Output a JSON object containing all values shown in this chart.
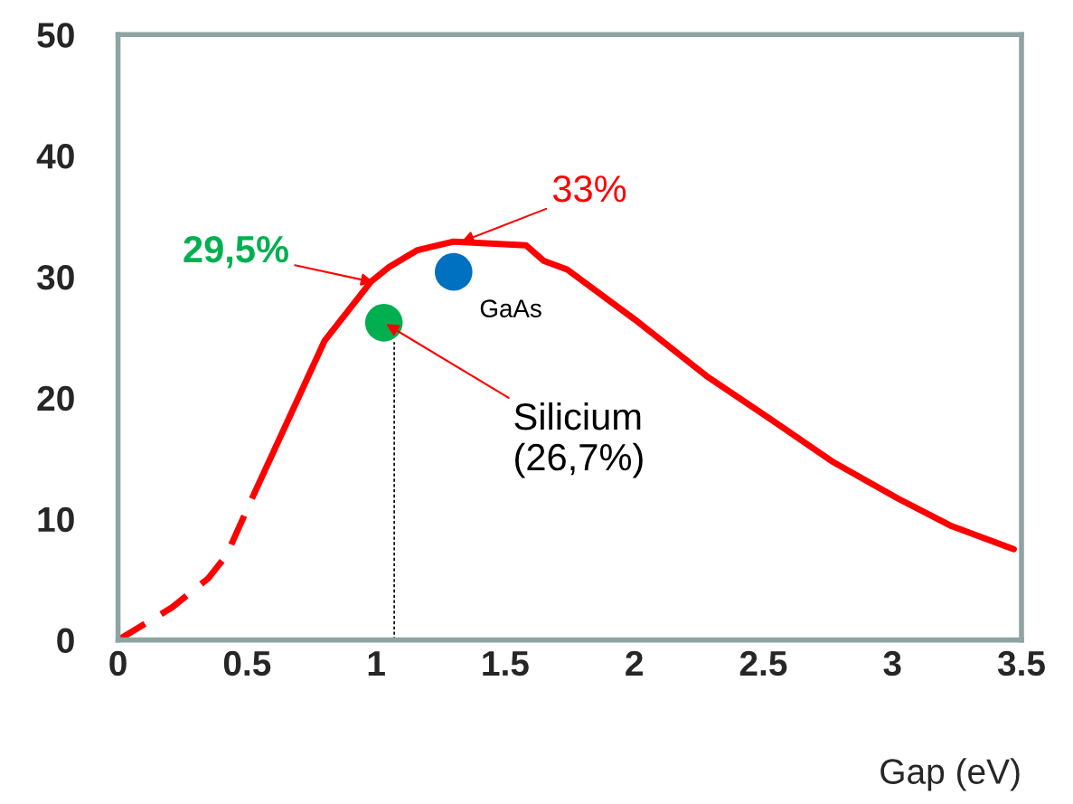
{
  "chart_data": {
    "type": "line",
    "xlabel": "Gap (eV)",
    "xlim": [
      0,
      3.5
    ],
    "ylim": [
      0,
      50
    ],
    "xticks": [
      0,
      0.5,
      1,
      1.5,
      2,
      2.5,
      3,
      3.5
    ],
    "yticks": [
      0,
      10,
      20,
      30,
      40,
      50
    ],
    "grid": false,
    "legend": false,
    "marker": "none",
    "series": [
      {
        "color": "#ff0000",
        "line_style": "dashed",
        "x": [
          0,
          0.21,
          0.35,
          0.42,
          0.53
        ],
        "values": [
          0,
          2.7,
          5.1,
          7.0,
          12.2
        ]
      },
      {
        "color": "#ff0000",
        "line_style": "solid",
        "x": [
          0.53,
          0.8,
          0.98,
          1.05,
          1.16,
          1.3,
          1.58,
          1.65,
          1.74,
          2.0,
          2.28,
          2.53,
          2.77,
          3.02,
          3.23,
          3.47
        ],
        "values": [
          12.2,
          24.7,
          29.6,
          30.8,
          32.2,
          32.9,
          32.6,
          31.3,
          30.6,
          26.5,
          21.8,
          18.2,
          14.7,
          11.7,
          9.4,
          7.5
        ]
      },
      {
        "color": "#000000",
        "line_style": "dotted",
        "x": [
          1.07,
          1.07
        ],
        "values": [
          0,
          24.6
        ]
      },
      {
        "type": "scatter",
        "marker": "circle",
        "colors": [
          "#00b050",
          "#0070c0"
        ],
        "x": [
          1.03,
          1.3
        ],
        "values": [
          26.2,
          30.4
        ]
      }
    ],
    "annotations": [
      {
        "text": "33%",
        "x": 1.32,
        "y": 32.8
      },
      {
        "text": "29,5%",
        "x": 1.0,
        "y": 29.5
      },
      {
        "text": "Silicium\n(26,7%)",
        "x": 1.03,
        "y": 26.2
      },
      {
        "text": "GaAs",
        "x": 1.3,
        "y": 30.4
      }
    ]
  }
}
